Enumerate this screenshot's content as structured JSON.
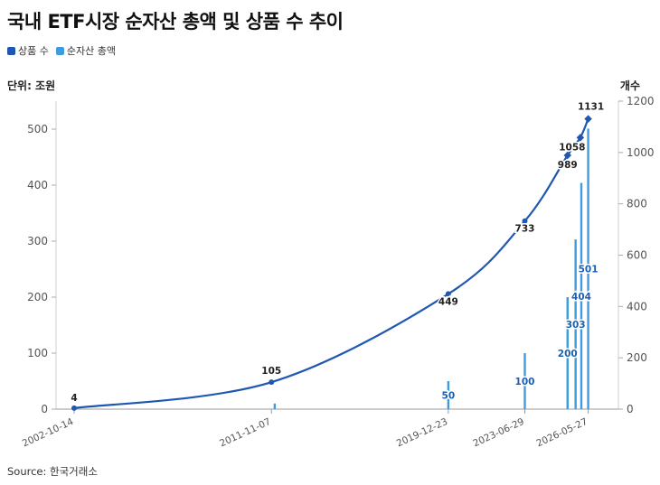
{
  "title": "국내 ETF시장 순자산 총액 및 상품 수 추이",
  "legend": [
    {
      "label": "상품 수",
      "color": "#1f57b3"
    },
    {
      "label": "순자산 총액",
      "color": "#3e9be0"
    }
  ],
  "unit_left": "단위: 조원",
  "unit_right": "개수",
  "source": "Source: 한국거래소",
  "chart_data": {
    "type": "bar+line",
    "x_ticks": [
      "2002-10-14",
      "2011-11-07",
      "2019-12-23",
      "2023-06-29",
      "2026-05-27"
    ],
    "x_range": [
      "2002-10-14",
      "2027-01-01"
    ],
    "y_left": {
      "label": "단위: 조원",
      "range": [
        0,
        550
      ],
      "ticks": [
        0,
        100,
        200,
        300,
        400,
        500
      ]
    },
    "y_right": {
      "label": "개수",
      "range": [
        0,
        1200
      ],
      "ticks": [
        0,
        200,
        400,
        600,
        800,
        1000,
        1200
      ]
    },
    "bars": {
      "name": "순자산 총액",
      "color": "#3e9be0",
      "points": [
        {
          "x": "2012-01-01",
          "value": 10
        },
        {
          "x": "2019-12-23",
          "value": 50,
          "label": "50"
        },
        {
          "x": "2023-06-29",
          "value": 100,
          "label": "100"
        },
        {
          "x": "2025-06-15",
          "value": 200,
          "label": "200"
        },
        {
          "x": "2025-10-28",
          "value": 303,
          "label": "303"
        },
        {
          "x": "2026-02-01",
          "value": 404,
          "label": "404"
        },
        {
          "x": "2026-05-27",
          "value": 501,
          "label": "501"
        }
      ]
    },
    "line": {
      "name": "상품 수",
      "color": "#1f57b3",
      "points": [
        {
          "x": "2002-10-14",
          "value": 4,
          "label": "4"
        },
        {
          "x": "2011-11-07",
          "value": 105,
          "label": "105"
        },
        {
          "x": "2019-12-23",
          "value": 449,
          "label": "449"
        },
        {
          "x": "2023-06-29",
          "value": 733,
          "label": "733"
        },
        {
          "x": "2025-06-15",
          "value": 989,
          "label": "989"
        },
        {
          "x": "2026-01-15",
          "value": 1058,
          "label": "1058"
        },
        {
          "x": "2026-05-27",
          "value": 1131,
          "label": "1131"
        }
      ]
    }
  }
}
